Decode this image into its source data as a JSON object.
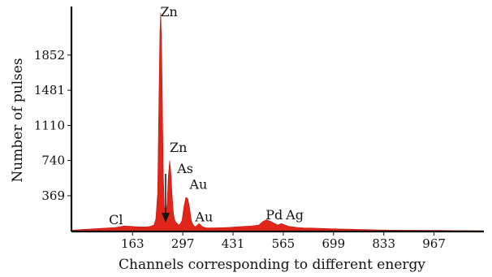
{
  "chart_data": {
    "type": "area",
    "title": "",
    "xlabel": "Channels corresponding to different energy",
    "ylabel": "Number of pulses",
    "xlim": [
      0,
      1100
    ],
    "ylim": [
      0,
      2330
    ],
    "xticks": [
      163,
      297,
      431,
      565,
      699,
      833,
      967
    ],
    "yticks": [
      369,
      740,
      1110,
      1481,
      1852
    ],
    "grid": false,
    "legend": "none",
    "fill_color": "#e1251b",
    "series": [
      {
        "values_description_free": true,
        "x": [
          0,
          20,
          40,
          60,
          80,
          100,
          120,
          140,
          160,
          180,
          200,
          210,
          220,
          225,
          230,
          233,
          236,
          238,
          240,
          242,
          245,
          248,
          252,
          255,
          258,
          262,
          265,
          268,
          272,
          275,
          278,
          282,
          285,
          290,
          295,
          300,
          305,
          310,
          315,
          320,
          325,
          330,
          335,
          340,
          345,
          350,
          360,
          380,
          400,
          420,
          440,
          460,
          480,
          500,
          510,
          520,
          530,
          540,
          550,
          560,
          570,
          580,
          600,
          620,
          640,
          660,
          680,
          700,
          720,
          740,
          760,
          780,
          800,
          820,
          840,
          860,
          880,
          900,
          940,
          980,
          1020,
          1060,
          1100
        ],
        "y": [
          5,
          10,
          15,
          20,
          25,
          30,
          35,
          50,
          45,
          40,
          40,
          45,
          60,
          120,
          400,
          1300,
          2100,
          2300,
          2050,
          1500,
          600,
          250,
          200,
          280,
          550,
          740,
          620,
          400,
          180,
          120,
          90,
          80,
          60,
          70,
          110,
          250,
          350,
          340,
          240,
          100,
          60,
          40,
          55,
          75,
          60,
          40,
          30,
          30,
          32,
          35,
          40,
          45,
          50,
          60,
          95,
          115,
          100,
          80,
          60,
          75,
          60,
          45,
          35,
          30,
          28,
          25,
          22,
          20,
          18,
          16,
          14,
          12,
          10,
          8,
          7,
          6,
          5,
          5,
          4,
          3,
          2,
          1,
          0
        ]
      }
    ],
    "annotations": [
      {
        "text": "Zn",
        "x": 237,
        "y": 2260
      },
      {
        "text": "Zn",
        "x": 262,
        "y": 830
      },
      {
        "text": "As",
        "x": 282,
        "y": 610
      },
      {
        "text": "Au",
        "x": 315,
        "y": 440
      },
      {
        "text": "Au",
        "x": 330,
        "y": 100
      },
      {
        "text": "Cl",
        "x": 100,
        "y": 70
      },
      {
        "text": "Pd",
        "x": 518,
        "y": 120
      },
      {
        "text": "Ag",
        "x": 572,
        "y": 120
      }
    ]
  }
}
